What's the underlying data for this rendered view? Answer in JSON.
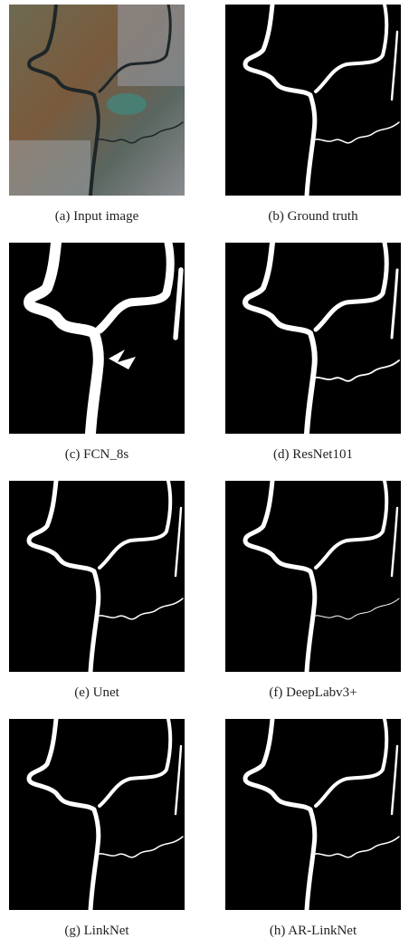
{
  "panels": [
    {
      "caption": "(a) Input image"
    },
    {
      "caption": "(b) Ground truth"
    },
    {
      "caption": "(c) FCN_8s"
    },
    {
      "caption": "(d) ResNet101"
    },
    {
      "caption": "(e) Unet"
    },
    {
      "caption": "(f) DeepLabv3+"
    },
    {
      "caption": "(g) LinkNet"
    },
    {
      "caption": "(h) AR-LinkNet"
    }
  ]
}
